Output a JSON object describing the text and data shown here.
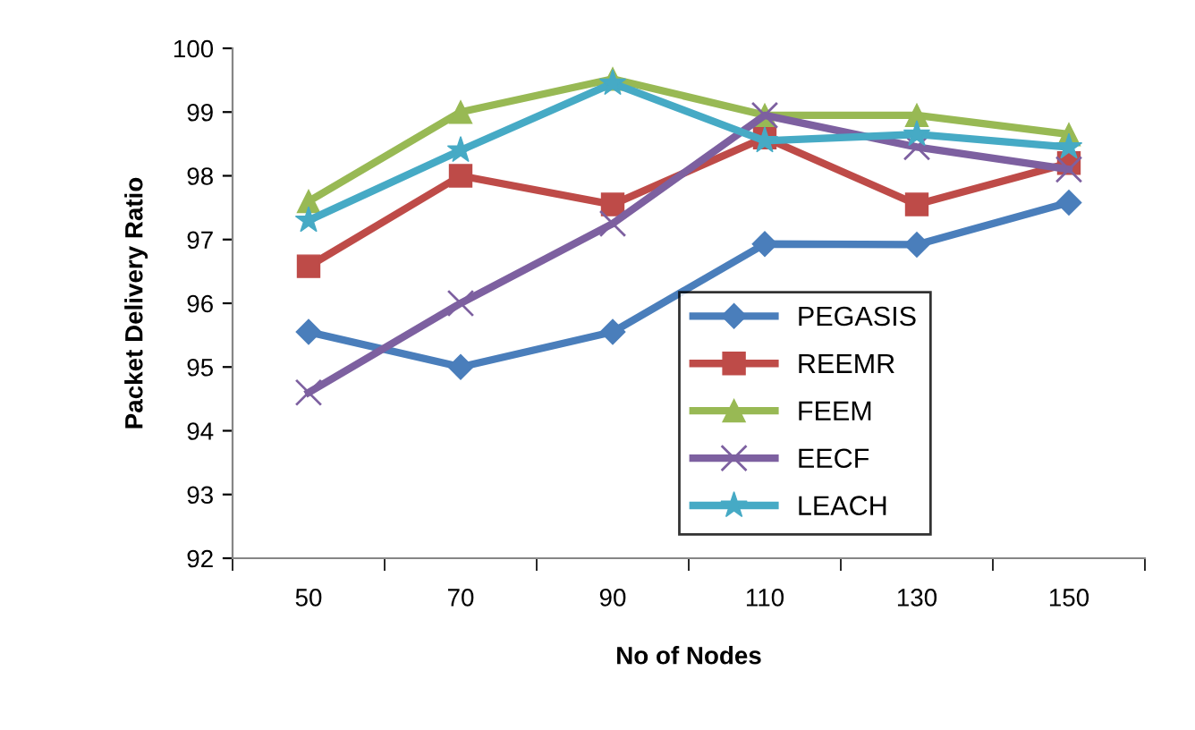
{
  "chart_data": {
    "type": "line",
    "xlabel": "No of Nodes",
    "ylabel": "Packet Delivery Ratio",
    "categories": [
      "50",
      "70",
      "90",
      "110",
      "130",
      "150"
    ],
    "ylim": [
      92,
      100
    ],
    "yticks": [
      92,
      93,
      94,
      95,
      96,
      97,
      98,
      99,
      100
    ],
    "grid": false,
    "legend": "bottom right",
    "series": [
      {
        "name": "PEGASIS",
        "color": "#4a7ebb",
        "marker": "diamond",
        "values": [
          95.55,
          95.0,
          95.55,
          96.93,
          96.92,
          97.58
        ]
      },
      {
        "name": "REEMR",
        "color": "#be4b48",
        "marker": "square",
        "values": [
          96.58,
          98.0,
          97.55,
          98.6,
          97.55,
          98.2
        ]
      },
      {
        "name": "FEEM",
        "color": "#98b954",
        "marker": "triangle",
        "values": [
          97.6,
          99.0,
          99.52,
          98.95,
          98.95,
          98.65
        ]
      },
      {
        "name": "EECF",
        "color": "#7d60a0",
        "marker": "cross",
        "values": [
          94.6,
          96.0,
          97.25,
          98.95,
          98.45,
          98.1
        ]
      },
      {
        "name": "LEACH",
        "color": "#46aac5",
        "marker": "star",
        "values": [
          97.3,
          98.4,
          99.45,
          98.55,
          98.65,
          98.45
        ]
      }
    ]
  }
}
